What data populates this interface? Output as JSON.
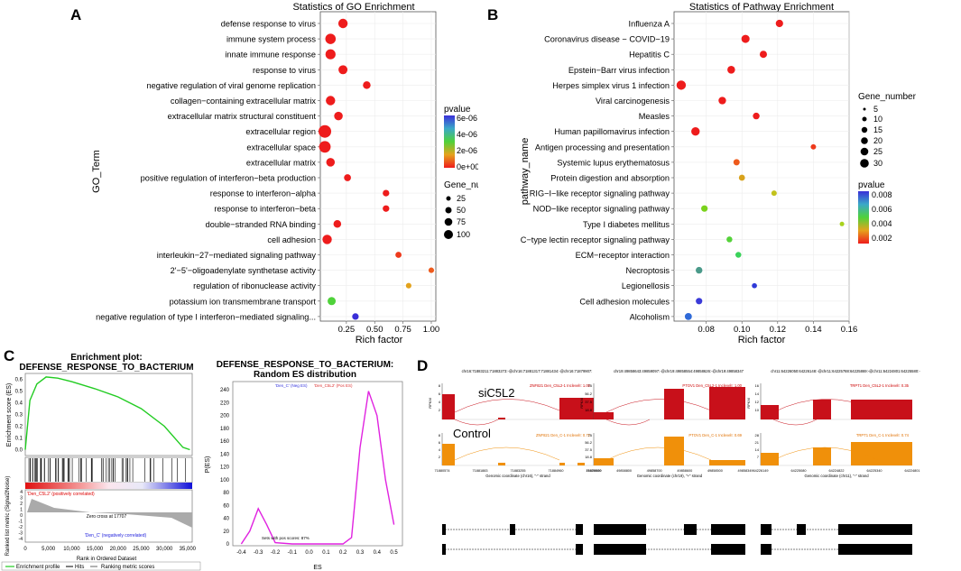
{
  "panel_a": {
    "letter": "A",
    "title": "Statistics of GO Enrichment",
    "ylabel": "GO_Term",
    "xlabel": "Rich factor",
    "xticks": [
      "0.25",
      "0.50",
      "0.75",
      "1.00"
    ],
    "xtick_values": [
      0.25,
      0.5,
      0.75,
      1.0
    ],
    "pvalue_title": "pvalue",
    "pvalue_ticks": [
      "6e-06",
      "4e-06",
      "2e-06",
      "0e+00"
    ],
    "gene_title": "Gene_number",
    "gene_sizes": [
      "25",
      "50",
      "75",
      "100"
    ],
    "terms": [
      {
        "name": "defense response to virus",
        "rich": 0.22,
        "genes": 45,
        "color": "#ee1c1c"
      },
      {
        "name": "immune system process",
        "rich": 0.11,
        "genes": 60,
        "color": "#ee1c1c"
      },
      {
        "name": "innate immune response",
        "rich": 0.11,
        "genes": 55,
        "color": "#ee1c1c"
      },
      {
        "name": "response to virus",
        "rich": 0.22,
        "genes": 40,
        "color": "#ee1c1c"
      },
      {
        "name": "negative regulation of viral genome replication",
        "rich": 0.43,
        "genes": 25,
        "color": "#ee1c1c"
      },
      {
        "name": "collagen−containing extracellular matrix",
        "rich": 0.11,
        "genes": 45,
        "color": "#ee1c1c"
      },
      {
        "name": "extracellular matrix structural constituent",
        "rich": 0.18,
        "genes": 35,
        "color": "#ee1c1c"
      },
      {
        "name": "extracellular region",
        "rich": 0.06,
        "genes": 100,
        "color": "#ee1c1c"
      },
      {
        "name": "extracellular space",
        "rich": 0.06,
        "genes": 80,
        "color": "#ee1c1c"
      },
      {
        "name": "extracellular matrix",
        "rich": 0.11,
        "genes": 35,
        "color": "#ee1c1c"
      },
      {
        "name": "positive regulation of interferon−beta production",
        "rich": 0.26,
        "genes": 18,
        "color": "#ee1c1c"
      },
      {
        "name": "response to interferon−alpha",
        "rich": 0.6,
        "genes": 15,
        "color": "#ee1c1c"
      },
      {
        "name": "response to interferon−beta",
        "rich": 0.6,
        "genes": 15,
        "color": "#ee1c1c"
      },
      {
        "name": "double−stranded RNA binding",
        "rich": 0.17,
        "genes": 25,
        "color": "#ee1c1c"
      },
      {
        "name": "cell adhesion",
        "rich": 0.08,
        "genes": 45,
        "color": "#ee1c1c"
      },
      {
        "name": "interleukin−27−mediated signaling pathway",
        "rich": 0.71,
        "genes": 12,
        "color": "#ee3a1c"
      },
      {
        "name": "2'−5'−oligoadenylate synthetase activity",
        "rich": 1.0,
        "genes": 8,
        "color": "#ee5a1c"
      },
      {
        "name": "regulation of ribonuclease activity",
        "rich": 0.8,
        "genes": 8,
        "color": "#e3a21c"
      },
      {
        "name": "potassium ion transmembrane transport",
        "rich": 0.12,
        "genes": 30,
        "color": "#4fd23a"
      },
      {
        "name": "negative regulation of type I interferon−mediated signaling...",
        "rich": 0.33,
        "genes": 15,
        "color": "#3a2fd8"
      }
    ]
  },
  "panel_b": {
    "letter": "B",
    "title": "Statistics of Pathway Enrichment",
    "ylabel": "pathway_name",
    "xlabel": "Rich factor",
    "xticks": [
      "0.08",
      "0.10",
      "0.12",
      "0.14",
      "0.16"
    ],
    "xtick_values": [
      0.08,
      0.1,
      0.12,
      0.14,
      0.16
    ],
    "gene_title": "Gene_number",
    "gene_sizes": [
      "5",
      "10",
      "15",
      "20",
      "25",
      "30"
    ],
    "pvalue_title": "pvalue",
    "pvalue_ticks": [
      "0.008",
      "0.006",
      "0.004",
      "0.002"
    ],
    "pathways": [
      {
        "name": "Influenza A",
        "rich": 0.121,
        "genes": 17,
        "color": "#ee1c1c"
      },
      {
        "name": "Coronavirus disease − COVID−19",
        "rich": 0.102,
        "genes": 22,
        "color": "#ee1c1c"
      },
      {
        "name": "Hepatitis C",
        "rich": 0.112,
        "genes": 16,
        "color": "#ee1c1c"
      },
      {
        "name": "Epstein−Barr virus infection",
        "rich": 0.094,
        "genes": 19,
        "color": "#ee1c1c"
      },
      {
        "name": "Herpes simplex virus 1 infection",
        "rich": 0.066,
        "genes": 31,
        "color": "#ee1c1c"
      },
      {
        "name": "Viral carcinogenesis",
        "rich": 0.089,
        "genes": 18,
        "color": "#ee1c1c"
      },
      {
        "name": "Measles",
        "rich": 0.108,
        "genes": 13,
        "color": "#ee1c1c"
      },
      {
        "name": "Human papillomavirus infection",
        "rich": 0.074,
        "genes": 24,
        "color": "#ee1c1c"
      },
      {
        "name": "Antigen processing and presentation",
        "rich": 0.14,
        "genes": 7,
        "color": "#ee3a1c"
      },
      {
        "name": "Systemic lupus erythematosus",
        "rich": 0.097,
        "genes": 11,
        "color": "#ee5a1c"
      },
      {
        "name": "Protein digestion and absorption",
        "rich": 0.1,
        "genes": 10,
        "color": "#d8a21c"
      },
      {
        "name": "RIG−I−like receptor signaling pathway",
        "rich": 0.118,
        "genes": 7,
        "color": "#c2c21c"
      },
      {
        "name": "NOD−like receptor signaling pathway",
        "rich": 0.079,
        "genes": 12,
        "color": "#7ad21c"
      },
      {
        "name": "Type I diabetes mellitus",
        "rich": 0.156,
        "genes": 4,
        "color": "#a8d21c"
      },
      {
        "name": "C−type lectin receptor signaling pathway",
        "rich": 0.093,
        "genes": 9,
        "color": "#55d23a"
      },
      {
        "name": "ECM−receptor interaction",
        "rich": 0.098,
        "genes": 9,
        "color": "#3ad25a"
      },
      {
        "name": "Necroptosis",
        "rich": 0.076,
        "genes": 13,
        "color": "#4a9a8a"
      },
      {
        "name": "Legionellosis",
        "rich": 0.107,
        "genes": 6,
        "color": "#2f3ad8"
      },
      {
        "name": "Cell adhesion molecules",
        "rich": 0.076,
        "genes": 12,
        "color": "#3a3ad8"
      },
      {
        "name": "Alcoholism",
        "rich": 0.07,
        "genes": 15,
        "color": "#2f6ad8"
      }
    ]
  },
  "panel_c": {
    "letter": "C",
    "enrich_title1": "Enrichment plot:",
    "enrich_title2": "DEFENSE_RESPONSE_TO_BACTERIUM",
    "es_ylabel": "Enrichment score (ES)",
    "es_yticks": [
      "0.6",
      "0.5",
      "0.4",
      "0.3",
      "0.2",
      "0.1",
      "0.0"
    ],
    "metric_ylabel": "Ranked list metric (Signal2Noise)",
    "metric_yticks": [
      "4",
      "3",
      "2",
      "1",
      "0",
      "-1",
      "-2",
      "-3",
      "-4"
    ],
    "pos_label": "'Den_C5L2' (positively correlated)",
    "neg_label": "'Den_C' (negatively correlated)",
    "zero_cross": "Zero cross at 17707",
    "xlabel": "Rank in Ordered Dataset",
    "xticks": [
      "0",
      "5,000",
      "10,000",
      "15,000",
      "20,000",
      "25,000",
      "30,000",
      "35,000"
    ],
    "legend_profile": "Enrichment profile",
    "legend_hits": "Hits",
    "legend_ranking": "Ranking metric scores",
    "dist_title1": "DEFENSE_RESPONSE_TO_BACTERIUM:",
    "dist_title2": "Random ES distribution",
    "dist_ylabel": "P(ES)",
    "dist_xlabel": "ES",
    "dist_yticks": [
      "240",
      "220",
      "200",
      "180",
      "160",
      "140",
      "120",
      "100",
      "80",
      "60",
      "40",
      "20",
      "0"
    ],
    "dist_xticks": [
      "-0.4",
      "-0.3",
      "-0.2",
      "-0.1",
      "0.0",
      "0.1",
      "0.2",
      "0.3",
      "0.4",
      "0.5"
    ],
    "dist_legend_neg": "'Den_C' (Neg ES)",
    "dist_legend_pos": "'Den_C5L2' (Pos ES)",
    "dist_note": "Sets with pos scores: 87%",
    "es_curve": [
      [
        0,
        0.0
      ],
      [
        1000,
        0.42
      ],
      [
        2500,
        0.56
      ],
      [
        4500,
        0.62
      ],
      [
        7000,
        0.61
      ],
      [
        10000,
        0.58
      ],
      [
        15000,
        0.52
      ],
      [
        20000,
        0.45
      ],
      [
        25000,
        0.35
      ],
      [
        30000,
        0.2
      ],
      [
        34000,
        0.02
      ],
      [
        35500,
        0.0
      ]
    ],
    "dist_curve": [
      [
        -0.4,
        0
      ],
      [
        -0.35,
        20
      ],
      [
        -0.3,
        55
      ],
      [
        -0.25,
        30
      ],
      [
        -0.2,
        2
      ],
      [
        -0.1,
        0
      ],
      [
        0.2,
        0
      ],
      [
        0.25,
        10
      ],
      [
        0.3,
        150
      ],
      [
        0.35,
        238
      ],
      [
        0.4,
        200
      ],
      [
        0.45,
        100
      ],
      [
        0.5,
        30
      ]
    ]
  },
  "panel_d": {
    "letter": "D",
    "sic_label": "siC5L2",
    "control_label": "Control",
    "tracks": [
      {
        "coord": "chr16:71883211:71883273:-@chr16:71881317:71881434:-@chr16:71879907:",
        "gene_sic": "ZNF821 Den_C5L2-1 InclevelI: 1.00",
        "gene_ctl": "ZNF821 Den_C-1 InclevelI: 0.72",
        "ticks": [
          "71880574",
          "71881883",
          "71883255",
          "71884960",
          "71879889"
        ],
        "xlabel": "Genomic coordinate (chr16), \"-\" strand",
        "axis_sic": [
          "8",
          "6",
          "4",
          "2"
        ],
        "axis_ctl": [
          "8",
          "6",
          "4",
          "2"
        ]
      },
      {
        "coord": "chr19:49858643:49859097:-@chr19:49858554:49858626:-@chr19:49858347",
        "gene_sic": "PTOV1 Den_C5L2-1 InclevelI: 1.00",
        "gene_ctl": "PTOV1 Den_C-1 InclevelI: 0.69",
        "ticks": [
          "49858900",
          "49858800",
          "49858700",
          "49858600",
          "49858500",
          "49858349"
        ],
        "xlabel": "Genomic coordinate (chr19), \"+\" strand",
        "axis_sic": [
          "75",
          "56.2",
          "37.5",
          "18.8"
        ],
        "axis_ctl": [
          "75",
          "56.2",
          "37.5",
          "18.8"
        ]
      },
      {
        "coord": "chr11:64226050:64226148:-@chr11:64225788:64225869:-@chr11:64224801:64225580:-",
        "gene_sic": "TRPT1 Den_C5L2-1 InclevelI: 0.35",
        "gene_ctl": "TRPT1 Den_C-1 InclevelI: 0.74",
        "ticks": [
          "64226149",
          "64225080",
          "64224822",
          "64225340",
          "64224801"
        ],
        "xlabel": "Genomic coordinate (chr11), \"-\" strand",
        "axis_sic": [
          "16",
          "14",
          "12",
          "10"
        ],
        "axis_ctl": [
          "28",
          "21",
          "14",
          "7"
        ]
      }
    ]
  }
}
